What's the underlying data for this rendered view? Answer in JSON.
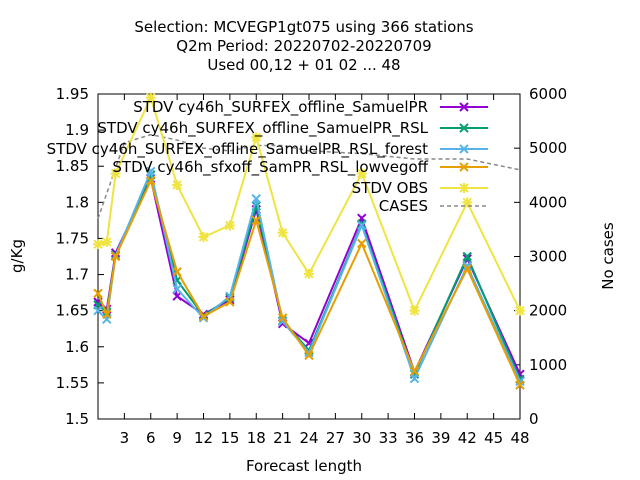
{
  "chart_data": {
    "type": "line",
    "title_lines": [
      "Selection: MCVEGP1gt075 using   366 stations",
      "Q2m   Period: 20220702-20220709",
      "Used  00,12  + 01 02 ... 48"
    ],
    "xlabel": "Forecast length",
    "ylabel": "g/Kg",
    "y2label": "No cases",
    "xlim": [
      0,
      48
    ],
    "ylim": [
      1.5,
      1.95
    ],
    "y2lim": [
      0,
      6000
    ],
    "xticks": [
      3,
      6,
      9,
      12,
      15,
      18,
      21,
      24,
      27,
      30,
      33,
      36,
      39,
      42,
      45,
      48
    ],
    "yticks": [
      "1.5",
      "1.55",
      "1.6",
      "1.65",
      "1.7",
      "1.75",
      "1.8",
      "1.85",
      "1.9",
      "1.95"
    ],
    "y2ticks": [
      "0",
      "1000",
      "2000",
      "3000",
      "4000",
      "5000",
      "6000"
    ],
    "x": [
      0,
      1,
      2,
      6,
      9,
      12,
      15,
      18,
      21,
      24,
      30,
      36,
      42,
      48
    ],
    "series": [
      {
        "name": "STDV cy46h_SURFEX_offline_SamuelPR",
        "color": "#9400d3",
        "marker": "x",
        "values": [
          1.662,
          1.652,
          1.73,
          1.833,
          1.67,
          1.645,
          1.665,
          1.79,
          1.632,
          1.605,
          1.778,
          1.565,
          1.722,
          1.562
        ]
      },
      {
        "name": "STDV cy46h_SURFEX_offline_SamuelPR_RSL",
        "color": "#009e73",
        "marker": "x",
        "values": [
          1.658,
          1.648,
          1.727,
          1.838,
          1.692,
          1.643,
          1.668,
          1.795,
          1.636,
          1.595,
          1.77,
          1.562,
          1.725,
          1.555
        ]
      },
      {
        "name": "STDV cy46h_SURFEX_offline_SamuelPR_RSL_forest",
        "color": "#56b4e9",
        "marker": "x",
        "values": [
          1.65,
          1.638,
          1.726,
          1.843,
          1.68,
          1.64,
          1.67,
          1.805,
          1.635,
          1.592,
          1.768,
          1.556,
          1.712,
          1.552
        ]
      },
      {
        "name": "STDV cy46h_sfxoff_SamPR_RSL_lowvegoff",
        "color": "#e69f00",
        "marker": "x",
        "values": [
          1.674,
          1.645,
          1.725,
          1.83,
          1.704,
          1.642,
          1.662,
          1.775,
          1.64,
          1.588,
          1.743,
          1.566,
          1.708,
          1.547
        ]
      },
      {
        "name": "STDV OBS",
        "color": "#f0e442",
        "marker": "star",
        "values": [
          1.742,
          1.745,
          1.84,
          1.945,
          1.824,
          1.752,
          1.768,
          1.89,
          1.758,
          1.701,
          1.84,
          1.65,
          1.8,
          1.65
        ]
      }
    ],
    "cases": {
      "name": "CASES",
      "color": "#888888",
      "x": [
        0,
        3,
        6,
        9,
        12,
        15,
        18,
        21,
        24,
        30,
        36,
        42,
        45,
        48
      ],
      "values": [
        3700,
        5100,
        5250,
        5150,
        5000,
        4950,
        5050,
        5050,
        4950,
        4900,
        4800,
        4800,
        4700,
        4600
      ]
    }
  }
}
